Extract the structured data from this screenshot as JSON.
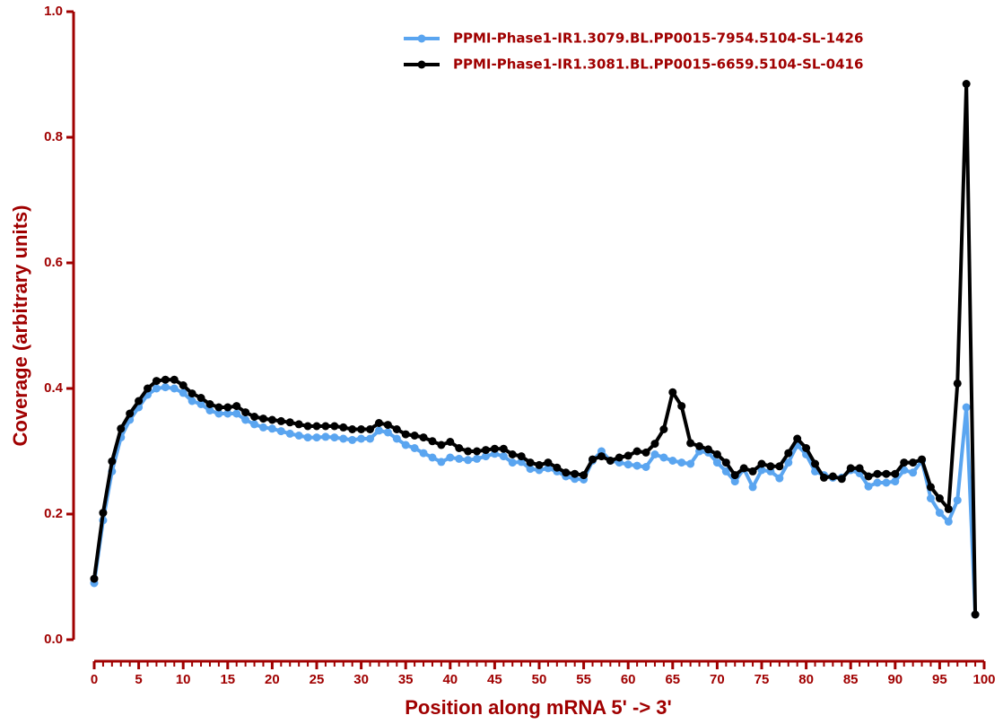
{
  "chart_data": {
    "type": "line",
    "x_label": "Position along mRNA 5' -> 3'",
    "y_label": "Coverage (arbitrary units)",
    "x": [
      0,
      1,
      2,
      3,
      4,
      5,
      6,
      7,
      8,
      9,
      10,
      11,
      12,
      13,
      14,
      15,
      16,
      17,
      18,
      19,
      20,
      21,
      22,
      23,
      24,
      25,
      26,
      27,
      28,
      29,
      30,
      31,
      32,
      33,
      34,
      35,
      36,
      37,
      38,
      39,
      40,
      41,
      42,
      43,
      44,
      45,
      46,
      47,
      48,
      49,
      50,
      51,
      52,
      53,
      54,
      55,
      56,
      57,
      58,
      59,
      60,
      61,
      62,
      63,
      64,
      65,
      66,
      67,
      68,
      69,
      70,
      71,
      72,
      73,
      74,
      75,
      76,
      77,
      78,
      79,
      80,
      81,
      82,
      83,
      84,
      85,
      86,
      87,
      88,
      89,
      90,
      91,
      92,
      93,
      94,
      95,
      96,
      97,
      98,
      99
    ],
    "series": [
      {
        "name": "PPMI-Phase1-IR1.3079.BL.PP0015-7954.5104-SL-1426",
        "color": "#5aa5f0",
        "values": [
          0.09,
          0.19,
          0.268,
          0.322,
          0.35,
          0.37,
          0.39,
          0.4,
          0.402,
          0.4,
          0.393,
          0.38,
          0.375,
          0.365,
          0.36,
          0.36,
          0.36,
          0.35,
          0.343,
          0.338,
          0.336,
          0.332,
          0.328,
          0.325,
          0.322,
          0.322,
          0.323,
          0.322,
          0.32,
          0.318,
          0.32,
          0.32,
          0.333,
          0.33,
          0.32,
          0.31,
          0.305,
          0.297,
          0.29,
          0.283,
          0.29,
          0.288,
          0.286,
          0.288,
          0.292,
          0.296,
          0.292,
          0.282,
          0.283,
          0.272,
          0.27,
          0.273,
          0.268,
          0.26,
          0.256,
          0.255,
          0.285,
          0.3,
          0.285,
          0.282,
          0.279,
          0.277,
          0.275,
          0.295,
          0.29,
          0.285,
          0.282,
          0.28,
          0.3,
          0.298,
          0.282,
          0.268,
          0.252,
          0.272,
          0.243,
          0.27,
          0.268,
          0.257,
          0.282,
          0.31,
          0.295,
          0.268,
          0.262,
          0.258,
          0.258,
          0.27,
          0.265,
          0.244,
          0.25,
          0.25,
          0.252,
          0.27,
          0.266,
          0.285,
          0.225,
          0.202,
          0.188,
          0.222,
          0.37,
          0.04
        ]
      },
      {
        "name": "PPMI-Phase1-IR1.3081.BL.PP0015-6659.5104-SL-0416",
        "color": "#000000",
        "values": [
          0.097,
          0.202,
          0.284,
          0.336,
          0.36,
          0.38,
          0.4,
          0.412,
          0.414,
          0.414,
          0.405,
          0.392,
          0.385,
          0.375,
          0.37,
          0.37,
          0.372,
          0.362,
          0.355,
          0.352,
          0.35,
          0.348,
          0.346,
          0.343,
          0.34,
          0.34,
          0.34,
          0.34,
          0.338,
          0.335,
          0.335,
          0.335,
          0.345,
          0.342,
          0.335,
          0.327,
          0.325,
          0.322,
          0.316,
          0.31,
          0.315,
          0.305,
          0.3,
          0.3,
          0.302,
          0.304,
          0.304,
          0.295,
          0.292,
          0.282,
          0.278,
          0.282,
          0.274,
          0.266,
          0.264,
          0.262,
          0.287,
          0.292,
          0.285,
          0.29,
          0.293,
          0.3,
          0.298,
          0.312,
          0.335,
          0.394,
          0.372,
          0.313,
          0.308,
          0.303,
          0.295,
          0.282,
          0.262,
          0.273,
          0.268,
          0.28,
          0.276,
          0.276,
          0.297,
          0.32,
          0.305,
          0.28,
          0.258,
          0.26,
          0.256,
          0.273,
          0.273,
          0.26,
          0.264,
          0.264,
          0.264,
          0.282,
          0.282,
          0.287,
          0.243,
          0.225,
          0.208,
          0.408,
          0.885,
          0.04
        ]
      }
    ],
    "xlim": [
      0,
      100
    ],
    "xticks": [
      0,
      5,
      10,
      15,
      20,
      25,
      30,
      35,
      40,
      45,
      50,
      55,
      60,
      65,
      70,
      75,
      80,
      85,
      90,
      95,
      100
    ],
    "x_minor_tick_step": 1,
    "ylim": [
      0,
      1
    ],
    "yticks": [
      {
        "value": 0,
        "label": "0.0"
      },
      0.2,
      0.4,
      0.6,
      0.8,
      {
        "value": 1,
        "label": "1.0"
      }
    ],
    "axis_color": "#a00000",
    "legend": "top"
  }
}
